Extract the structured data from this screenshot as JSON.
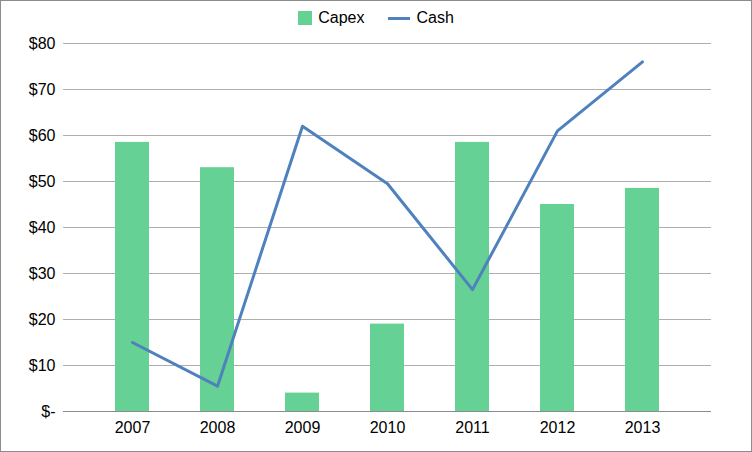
{
  "chart_data": {
    "type": "bar",
    "categories": [
      "2007",
      "2008",
      "2009",
      "2010",
      "2011",
      "2012",
      "2013"
    ],
    "series": [
      {
        "name": "Capex",
        "type": "bar",
        "color": "#66d194",
        "values": [
          58.5,
          53,
          4,
          19,
          58.5,
          45,
          48.5
        ]
      },
      {
        "name": "Cash",
        "type": "line",
        "color": "#4f81bd",
        "values": [
          15,
          5.5,
          62,
          49.5,
          26.5,
          61,
          76
        ]
      }
    ],
    "ylim": [
      0,
      80
    ],
    "yticks": [
      {
        "value": 0,
        "label": "$-"
      },
      {
        "value": 10,
        "label": "$10"
      },
      {
        "value": 20,
        "label": "$20"
      },
      {
        "value": 30,
        "label": "$30"
      },
      {
        "value": 40,
        "label": "$40"
      },
      {
        "value": 50,
        "label": "$50"
      },
      {
        "value": 60,
        "label": "$60"
      },
      {
        "value": 70,
        "label": "$70"
      },
      {
        "value": 80,
        "label": "$80"
      }
    ],
    "grid": true,
    "legend": "top"
  }
}
